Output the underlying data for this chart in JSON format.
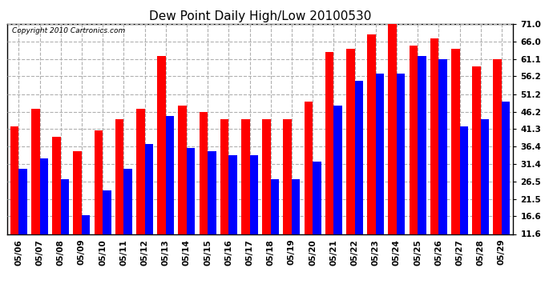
{
  "title": "Dew Point Daily High/Low 20100530",
  "copyright": "Copyright 2010 Cartronics.com",
  "dates": [
    "05/06",
    "05/07",
    "05/08",
    "05/09",
    "05/10",
    "05/11",
    "05/12",
    "05/13",
    "05/14",
    "05/15",
    "05/16",
    "05/17",
    "05/18",
    "05/19",
    "05/20",
    "05/21",
    "05/22",
    "05/23",
    "05/24",
    "05/25",
    "05/26",
    "05/27",
    "05/28",
    "05/29"
  ],
  "highs": [
    42.0,
    47.0,
    39.0,
    35.0,
    41.0,
    44.0,
    47.0,
    62.0,
    48.0,
    46.0,
    44.0,
    44.0,
    44.0,
    44.0,
    49.0,
    63.0,
    64.0,
    68.0,
    72.0,
    65.0,
    67.0,
    64.0,
    59.0,
    61.0
  ],
  "lows": [
    30.0,
    33.0,
    27.0,
    17.0,
    24.0,
    30.0,
    37.0,
    45.0,
    36.0,
    35.0,
    34.0,
    34.0,
    27.0,
    27.0,
    32.0,
    48.0,
    55.0,
    57.0,
    57.0,
    62.0,
    61.0,
    42.0,
    44.0,
    49.0
  ],
  "high_color": "#ff0000",
  "low_color": "#0000ff",
  "bg_color": "#ffffff",
  "grid_color": "#b0b0b0",
  "y_ticks": [
    11.6,
    16.6,
    21.5,
    26.5,
    31.4,
    36.4,
    41.3,
    46.2,
    51.2,
    56.2,
    61.1,
    66.0,
    71.0
  ],
  "ylim": [
    11.6,
    71.0
  ],
  "bar_width": 0.4,
  "title_fontsize": 11,
  "tick_fontsize": 7.5,
  "copyright_fontsize": 6.5
}
